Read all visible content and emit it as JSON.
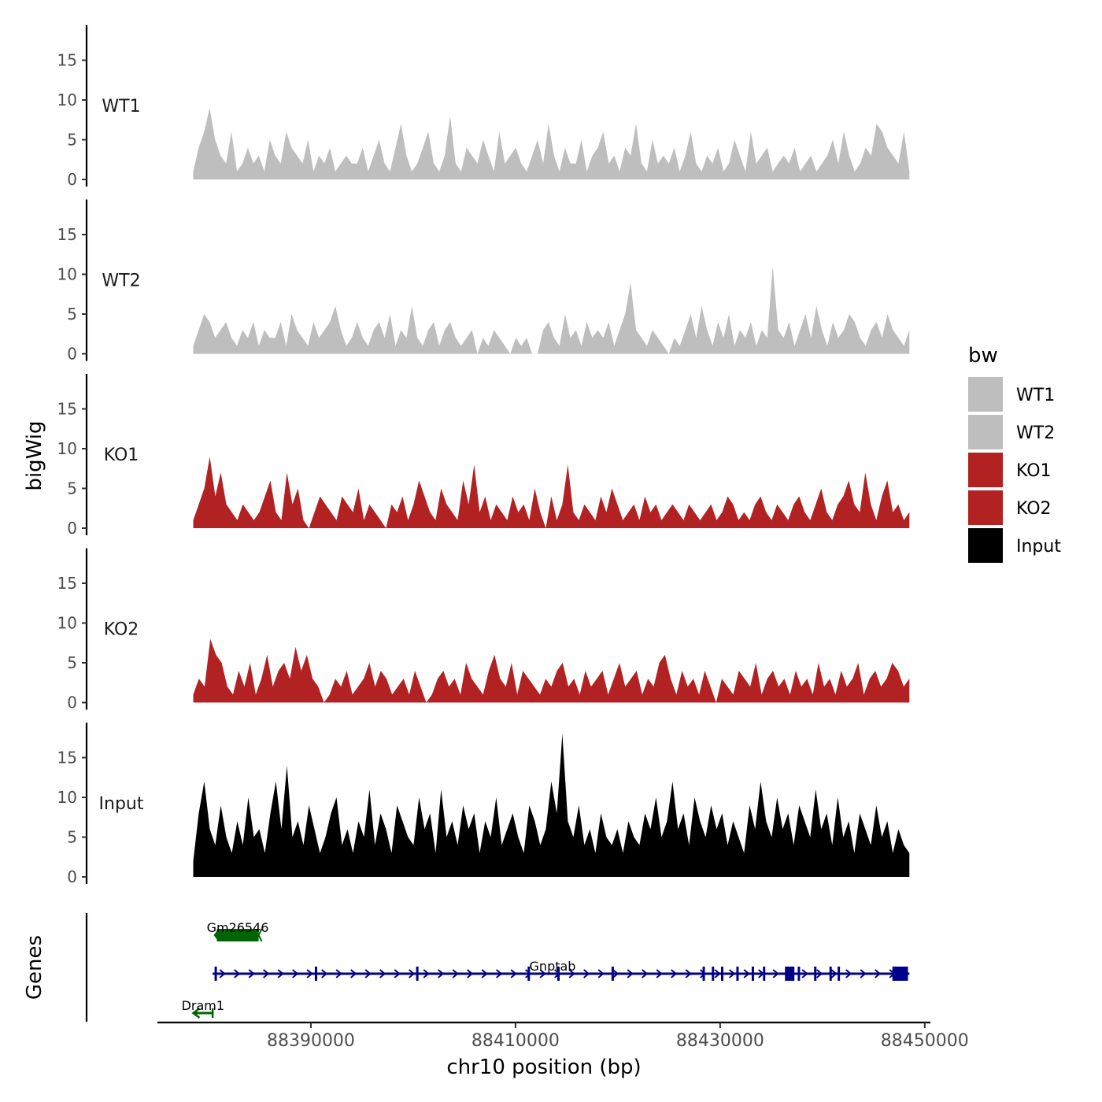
{
  "chart_data": {
    "type": "area",
    "xlabel": "chr10 position (bp)",
    "ylabel_tracks": "bigWig",
    "ylabel_genes": "Genes",
    "x_ticks": [
      88390000,
      88410000,
      88430000,
      88450000
    ],
    "x_tick_labels": [
      "88390000",
      "88410000",
      "88430000",
      "88450000"
    ],
    "xlim": [
      88375000,
      88450400
    ],
    "data_range": [
      88378500,
      88448500
    ],
    "y_ticks": [
      0,
      5,
      10,
      15
    ],
    "y_tick_labels": [
      "0",
      "5",
      "10",
      "15"
    ],
    "ylim": [
      0,
      19
    ],
    "legend": {
      "title": "bw",
      "position": "right",
      "entries": [
        {
          "label": "WT1",
          "color": "#BEBEBE"
        },
        {
          "label": "WT2",
          "color": "#BEBEBE"
        },
        {
          "label": "KO1",
          "color": "#B22222"
        },
        {
          "label": "KO2",
          "color": "#B22222"
        },
        {
          "label": "Input",
          "color": "#000000"
        }
      ]
    },
    "series": [
      {
        "name": "WT1",
        "label": "WT1",
        "color": "#BEBEBE",
        "values": [
          1,
          4,
          6,
          9,
          5,
          3,
          2,
          6,
          1,
          2,
          4,
          2,
          3,
          1,
          5,
          3,
          2,
          6,
          4,
          3,
          2,
          5,
          1,
          3,
          2,
          4,
          1,
          2,
          3,
          2,
          2,
          4,
          1,
          3,
          5,
          2,
          1,
          4,
          7,
          3,
          1,
          2,
          4,
          6,
          2,
          1,
          3,
          8,
          2,
          1,
          4,
          3,
          2,
          5,
          3,
          1,
          6,
          2,
          3,
          4,
          2,
          1,
          3,
          5,
          2,
          7,
          3,
          1,
          4,
          2,
          2,
          5,
          1,
          3,
          4,
          6,
          2,
          3,
          1,
          4,
          3,
          7,
          2,
          1,
          5,
          2,
          3,
          2,
          4,
          1,
          3,
          6,
          2,
          1,
          3,
          2,
          4,
          1,
          2,
          5,
          3,
          1,
          6,
          2,
          3,
          4,
          1,
          2,
          3,
          2,
          4,
          1,
          2,
          3,
          1,
          2,
          3,
          5,
          2,
          6,
          3,
          1,
          2,
          4,
          3,
          7,
          6,
          4,
          3,
          2,
          6,
          1
        ]
      },
      {
        "name": "WT2",
        "label": "WT2",
        "color": "#BEBEBE",
        "values": [
          1,
          3,
          5,
          4,
          2,
          3,
          4,
          2,
          1,
          3,
          2,
          4,
          1,
          3,
          2,
          2,
          4,
          1,
          5,
          3,
          2,
          1,
          4,
          2,
          3,
          4,
          6,
          3,
          1,
          2,
          4,
          2,
          1,
          3,
          4,
          2,
          5,
          1,
          3,
          2,
          6,
          2,
          1,
          3,
          4,
          1,
          3,
          4,
          2,
          1,
          2,
          3,
          0,
          2,
          1,
          3,
          2,
          1,
          0,
          2,
          1,
          2,
          0,
          0,
          3,
          4,
          2,
          1,
          5,
          2,
          3,
          1,
          4,
          2,
          3,
          2,
          4,
          1,
          3,
          5,
          9,
          3,
          2,
          1,
          3,
          2,
          1,
          0,
          2,
          1,
          3,
          5,
          2,
          6,
          3,
          1,
          4,
          2,
          5,
          1,
          3,
          2,
          4,
          1,
          3,
          2,
          11,
          3,
          2,
          4,
          1,
          3,
          5,
          2,
          6,
          3,
          1,
          4,
          2,
          3,
          5,
          4,
          2,
          1,
          3,
          4,
          2,
          5,
          3,
          2,
          1,
          3
        ]
      },
      {
        "name": "KO1",
        "label": "KO1",
        "color": "#B22222",
        "values": [
          1,
          3,
          5,
          9,
          4,
          7,
          3,
          2,
          1,
          3,
          2,
          1,
          2,
          4,
          6,
          2,
          1,
          7,
          3,
          5,
          1,
          0,
          2,
          4,
          3,
          2,
          1,
          4,
          3,
          2,
          5,
          1,
          3,
          2,
          1,
          0,
          3,
          2,
          4,
          1,
          3,
          6,
          4,
          2,
          1,
          5,
          3,
          2,
          1,
          6,
          3,
          8,
          2,
          4,
          1,
          3,
          2,
          1,
          4,
          2,
          3,
          1,
          5,
          2,
          0,
          4,
          1,
          3,
          8,
          2,
          1,
          3,
          2,
          1,
          4,
          2,
          5,
          3,
          1,
          2,
          3,
          1,
          4,
          2,
          3,
          1,
          2,
          3,
          2,
          1,
          3,
          2,
          1,
          2,
          3,
          1,
          2,
          4,
          3,
          1,
          2,
          1,
          3,
          4,
          2,
          1,
          3,
          2,
          1,
          3,
          4,
          2,
          1,
          3,
          5,
          2,
          1,
          3,
          4,
          6,
          3,
          2,
          7,
          3,
          1,
          4,
          6,
          2,
          3,
          1,
          2
        ]
      },
      {
        "name": "KO2",
        "label": "KO2",
        "color": "#B22222",
        "values": [
          1,
          3,
          2,
          8,
          6,
          5,
          2,
          1,
          4,
          2,
          5,
          1,
          3,
          6,
          2,
          4,
          5,
          3,
          7,
          4,
          6,
          3,
          2,
          0,
          1,
          3,
          2,
          4,
          1,
          2,
          3,
          5,
          2,
          4,
          3,
          1,
          2,
          3,
          1,
          4,
          2,
          0,
          1,
          3,
          4,
          2,
          3,
          1,
          5,
          3,
          2,
          1,
          4,
          6,
          3,
          2,
          5,
          1,
          4,
          3,
          2,
          1,
          3,
          2,
          4,
          5,
          2,
          3,
          1,
          4,
          2,
          3,
          4,
          1,
          3,
          5,
          2,
          3,
          4,
          1,
          3,
          2,
          5,
          6,
          3,
          1,
          4,
          2,
          3,
          1,
          4,
          2,
          0,
          3,
          2,
          1,
          4,
          3,
          2,
          5,
          1,
          3,
          4,
          2,
          3,
          1,
          4,
          2,
          3,
          1,
          5,
          2,
          3,
          1,
          4,
          2,
          3,
          5,
          1,
          3,
          4,
          2,
          3,
          5,
          4,
          2,
          3
        ]
      },
      {
        "name": "Input",
        "label": "Input",
        "color": "#000000",
        "values": [
          2,
          8,
          12,
          6,
          4,
          9,
          5,
          3,
          7,
          4,
          10,
          5,
          6,
          3,
          8,
          12,
          6,
          14,
          5,
          7,
          4,
          9,
          6,
          3,
          5,
          8,
          10,
          4,
          6,
          3,
          7,
          5,
          11,
          4,
          8,
          6,
          3,
          9,
          7,
          5,
          4,
          10,
          6,
          8,
          3,
          11,
          5,
          7,
          4,
          9,
          6,
          8,
          3,
          7,
          5,
          10,
          4,
          6,
          8,
          5,
          3,
          9,
          7,
          4,
          6,
          12,
          8,
          18,
          7,
          5,
          9,
          4,
          6,
          3,
          8,
          5,
          4,
          6,
          3,
          7,
          5,
          4,
          8,
          6,
          10,
          5,
          7,
          12,
          6,
          8,
          4,
          10,
          7,
          5,
          9,
          6,
          8,
          4,
          7,
          5,
          3,
          9,
          6,
          12,
          7,
          5,
          10,
          6,
          8,
          4,
          9,
          7,
          5,
          11,
          6,
          8,
          4,
          10,
          5,
          7,
          3,
          8,
          6,
          4,
          9,
          5,
          7,
          3,
          6,
          4,
          3
        ]
      }
    ],
    "genes": [
      {
        "name": "Gm26546",
        "start": 88380500,
        "end": 88385200,
        "strand": "-",
        "color": "#006400",
        "row": 0
      },
      {
        "name": "Gnptab",
        "start": 88380400,
        "end": 88448500,
        "strand": "+",
        "color": "#00008B",
        "row": 1,
        "exons": [
          88380700,
          88390500,
          88400400,
          88411300,
          88414200,
          88419500,
          88428400,
          88429300,
          88430200,
          88431700,
          88433200,
          88434300,
          88436800,
          88437700,
          88439300,
          88440800,
          88441600,
          88447300,
          88447900
        ]
      },
      {
        "name": "Dram1",
        "start": 88378500,
        "end": 88380400,
        "strand": "-",
        "color": "#006400",
        "row": 2
      }
    ]
  }
}
